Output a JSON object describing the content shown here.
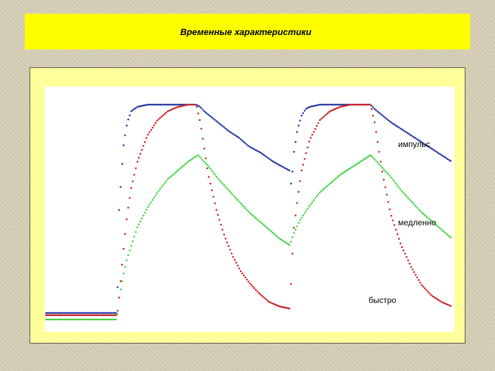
{
  "title": "Временные характеристики",
  "colors": {
    "impulse": "#1f2fa0",
    "slow": "#3cd23c",
    "fast": "#c81e1e",
    "banner": "#ffff00",
    "frame": "#ffff99"
  },
  "chart_data": {
    "type": "scatter",
    "title": "Временные характеристики",
    "xlabel": "",
    "ylabel": "",
    "grid": false,
    "legend": "inline-right",
    "series": [
      {
        "name": "импульс",
        "x": [
          0,
          20,
          35,
          36,
          38,
          40,
          42,
          45,
          50,
          60,
          74,
          76,
          78,
          82,
          86,
          90,
          95,
          100,
          106,
          112,
          118,
          120,
          121,
          122,
          124,
          126,
          128,
          130,
          135,
          140,
          160,
          162,
          166,
          170,
          175,
          180,
          185,
          190,
          195,
          200
        ],
        "y": [
          0.03,
          0.03,
          0.03,
          0.5,
          0.78,
          0.9,
          0.95,
          0.97,
          0.98,
          0.98,
          0.98,
          0.97,
          0.95,
          0.92,
          0.89,
          0.86,
          0.83,
          0.79,
          0.76,
          0.72,
          0.69,
          0.68,
          0.6,
          0.75,
          0.87,
          0.93,
          0.96,
          0.97,
          0.98,
          0.98,
          0.98,
          0.96,
          0.93,
          0.9,
          0.87,
          0.84,
          0.81,
          0.78,
          0.75,
          0.72
        ]
      },
      {
        "name": "медленно",
        "x": [
          0,
          20,
          35,
          36,
          38,
          40,
          45,
          50,
          55,
          60,
          65,
          70,
          75,
          80,
          85,
          90,
          95,
          100,
          105,
          110,
          115,
          120,
          121,
          122,
          125,
          130,
          135,
          140,
          145,
          150,
          155,
          160,
          165,
          170,
          175,
          180,
          185,
          190,
          195,
          200
        ],
        "y": [
          0,
          0,
          0,
          0.1,
          0.2,
          0.28,
          0.42,
          0.51,
          0.58,
          0.64,
          0.68,
          0.72,
          0.75,
          0.7,
          0.64,
          0.59,
          0.54,
          0.49,
          0.45,
          0.41,
          0.37,
          0.34,
          0.36,
          0.39,
          0.45,
          0.52,
          0.58,
          0.62,
          0.66,
          0.69,
          0.72,
          0.75,
          0.7,
          0.65,
          0.59,
          0.54,
          0.49,
          0.45,
          0.41,
          0.37
        ]
      },
      {
        "name": "быстро",
        "x": [
          0,
          20,
          35,
          36,
          38,
          40,
          42,
          45,
          50,
          55,
          60,
          65,
          70,
          74,
          76,
          78,
          80,
          84,
          88,
          92,
          96,
          100,
          105,
          110,
          115,
          120,
          121,
          122,
          124,
          126,
          130,
          135,
          140,
          145,
          150,
          160,
          162,
          164,
          166,
          170,
          175,
          180,
          185,
          190,
          195,
          200
        ],
        "y": [
          0.02,
          0.02,
          0.02,
          0.1,
          0.3,
          0.48,
          0.6,
          0.72,
          0.84,
          0.91,
          0.95,
          0.97,
          0.98,
          0.98,
          0.9,
          0.78,
          0.66,
          0.5,
          0.38,
          0.29,
          0.22,
          0.17,
          0.12,
          0.08,
          0.06,
          0.05,
          0.2,
          0.4,
          0.55,
          0.68,
          0.82,
          0.91,
          0.95,
          0.97,
          0.98,
          0.98,
          0.9,
          0.78,
          0.66,
          0.48,
          0.34,
          0.24,
          0.16,
          0.11,
          0.08,
          0.06
        ]
      }
    ]
  }
}
